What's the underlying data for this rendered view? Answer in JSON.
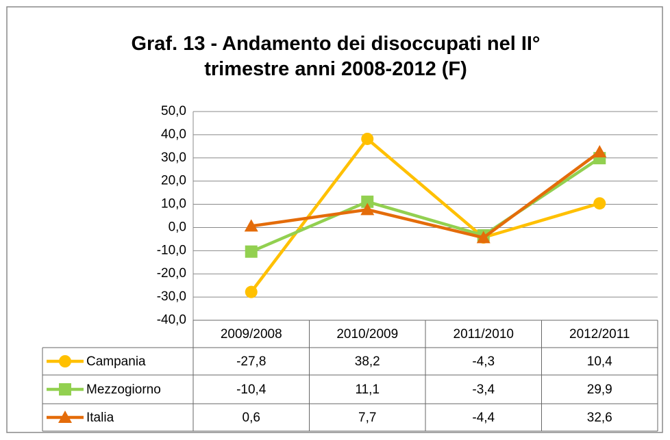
{
  "chart_data": {
    "type": "line",
    "title": "Graf. 13 - Andamento dei disoccupati nel II° trimestre anni 2008-2012 (F)",
    "categories": [
      "2009/2008",
      "2010/2009",
      "2011/2010",
      "2012/2011"
    ],
    "series": [
      {
        "name": "Campania",
        "color": "#FFC000",
        "marker": "circle",
        "values": [
          -27.8,
          38.2,
          -4.3,
          10.4
        ],
        "value_labels": [
          "-27,8",
          "38,2",
          "-4,3",
          "10,4"
        ]
      },
      {
        "name": "Mezzogiorno",
        "color": "#92D050",
        "marker": "square",
        "values": [
          -10.4,
          11.1,
          -3.4,
          29.9
        ],
        "value_labels": [
          "-10,4",
          "11,1",
          "-3,4",
          "29,9"
        ]
      },
      {
        "name": "Italia",
        "color": "#E46C0A",
        "marker": "triangle",
        "values": [
          0.6,
          7.7,
          -4.4,
          32.6
        ],
        "value_labels": [
          "0,6",
          "7,7",
          "-4,4",
          "32,6"
        ]
      }
    ],
    "ylim": [
      -40,
      50
    ],
    "yticks": [
      {
        "value": -40,
        "label": "-40,0"
      },
      {
        "value": -30,
        "label": "-30,0"
      },
      {
        "value": -20,
        "label": "-20,0"
      },
      {
        "value": -10,
        "label": "-10,0"
      },
      {
        "value": 0,
        "label": "0,0"
      },
      {
        "value": 10,
        "label": "10,0"
      },
      {
        "value": 20,
        "label": "20,0"
      },
      {
        "value": 30,
        "label": "30,0"
      },
      {
        "value": 40,
        "label": "40,0"
      },
      {
        "value": 50,
        "label": "50,0"
      }
    ],
    "grid": true
  }
}
